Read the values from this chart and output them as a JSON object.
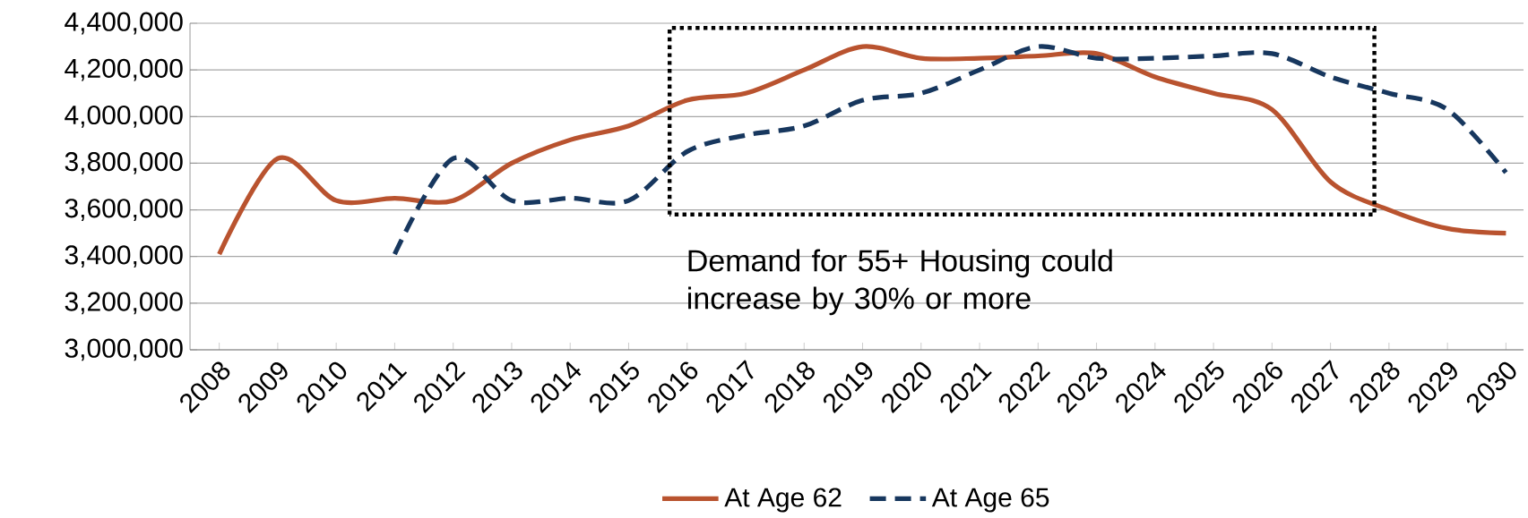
{
  "chart_data": {
    "type": "line",
    "categories": [
      "2008",
      "2009",
      "2010",
      "2011",
      "2012",
      "2013",
      "2014",
      "2015",
      "2016",
      "2017",
      "2018",
      "2019",
      "2020",
      "2021",
      "2022",
      "2023",
      "2024",
      "2025",
      "2026",
      "2027",
      "2028",
      "2029",
      "2030"
    ],
    "series": [
      {
        "name": "At Age 62",
        "color": "#b9532f",
        "line_style": "solid",
        "values": [
          3410000,
          3820000,
          3640000,
          3650000,
          3640000,
          3800000,
          3900000,
          3960000,
          4070000,
          4100000,
          4200000,
          4300000,
          4250000,
          4250000,
          4260000,
          4270000,
          4170000,
          4100000,
          4030000,
          3720000,
          3600000,
          3520000,
          3500000
        ]
      },
      {
        "name": "At Age 65",
        "color": "#17375e",
        "line_style": "dashed",
        "values": [
          null,
          null,
          null,
          3410000,
          3820000,
          3640000,
          3650000,
          3640000,
          3850000,
          3920000,
          3960000,
          4070000,
          4100000,
          4200000,
          4300000,
          4250000,
          4250000,
          4260000,
          4270000,
          4170000,
          4100000,
          4030000,
          3760000
        ]
      }
    ],
    "ylim": [
      3000000,
      4400000
    ],
    "yticks": [
      {
        "value": 3000000,
        "label": "3,000,000"
      },
      {
        "value": 3200000,
        "label": "3,200,000"
      },
      {
        "value": 3400000,
        "label": "3,400,000"
      },
      {
        "value": 3600000,
        "label": "3,600,000"
      },
      {
        "value": 3800000,
        "label": "3,800,000"
      },
      {
        "value": 4000000,
        "label": "4,000,000"
      },
      {
        "value": 4200000,
        "label": "4,200,000"
      },
      {
        "value": 4400000,
        "label": "4,400,000"
      }
    ],
    "grid": "y",
    "legend": "bottom",
    "marker": "none",
    "annotations": [
      "Demand for 55+ Housing could increase by 30% or more"
    ]
  }
}
